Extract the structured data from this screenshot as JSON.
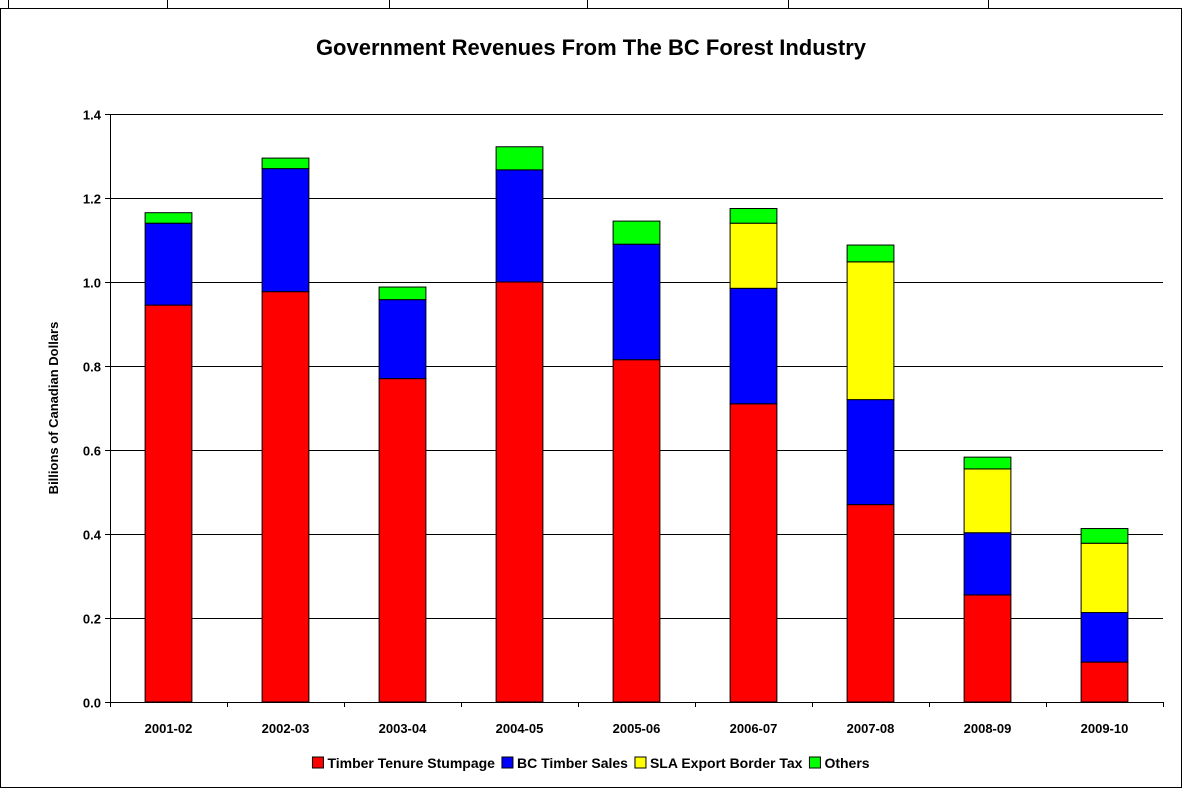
{
  "chart_data": {
    "type": "bar",
    "stacked": true,
    "title": "Government Revenues From The BC Forest Industry",
    "xlabel": "",
    "ylabel": "Billions of Canadian Dollars",
    "ylim": [
      0,
      1.4
    ],
    "yticks": [
      "0.0",
      "0.2",
      "0.4",
      "0.6",
      "0.8",
      "1.0",
      "1.2",
      "1.4"
    ],
    "grid": true,
    "legend_position": "bottom",
    "categories": [
      "2001-02",
      "2002-03",
      "2003-04",
      "2004-05",
      "2005-06",
      "2006-07",
      "2007-08",
      "2008-09",
      "2009-10"
    ],
    "series": [
      {
        "name": "Timber Tenure Stumpage",
        "color": "#ff0000",
        "values": [
          0.945,
          0.977,
          0.77,
          1.0,
          0.815,
          0.71,
          0.47,
          0.255,
          0.095
        ]
      },
      {
        "name": "BC Timber Sales",
        "color": "#0000ff",
        "values": [
          0.195,
          0.293,
          0.188,
          0.267,
          0.275,
          0.275,
          0.25,
          0.148,
          0.118
        ]
      },
      {
        "name": "SLA Export Border Tax",
        "color": "#ffff00",
        "values": [
          0,
          0,
          0,
          0,
          0,
          0.155,
          0.328,
          0.152,
          0.165
        ]
      },
      {
        "name": "Others",
        "color": "#00ff00",
        "values": [
          0.025,
          0.025,
          0.03,
          0.055,
          0.055,
          0.035,
          0.04,
          0.028,
          0.035
        ]
      }
    ]
  }
}
